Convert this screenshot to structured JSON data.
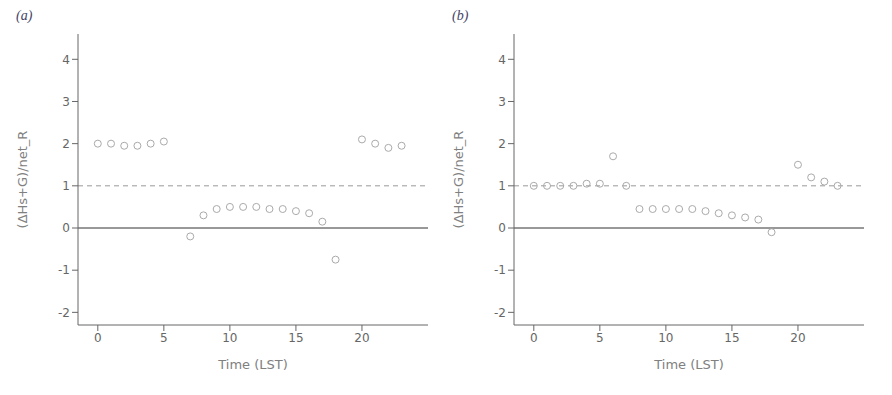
{
  "chart_data": [
    {
      "type": "scatter",
      "title": "(a)",
      "x_label": "Time (LST)",
      "y_label": "(ΔHs+G)/net_R",
      "x": [
        0,
        1,
        2,
        3,
        4,
        5,
        7,
        8,
        9,
        10,
        11,
        12,
        13,
        14,
        15,
        16,
        17,
        18,
        20,
        21,
        22,
        23
      ],
      "values": [
        2.0,
        2.0,
        1.95,
        1.95,
        2.0,
        2.05,
        -0.2,
        0.3,
        0.45,
        0.5,
        0.5,
        0.5,
        0.45,
        0.45,
        0.4,
        0.35,
        0.15,
        -0.75,
        2.1,
        2.0,
        1.9,
        1.95
      ],
      "color": "#aaaaaa",
      "marker": "open_circle",
      "xlim": [
        -1.5,
        25
      ],
      "ylim": [
        -2.3,
        4.6
      ],
      "xticks": [
        0,
        5,
        10,
        15,
        20
      ],
      "yticks": [
        -2,
        -1,
        0,
        1,
        2,
        3,
        4
      ],
      "grid": false,
      "reference_lines": [
        {
          "y": 0,
          "color": "#333333",
          "line_style": "solid"
        },
        {
          "y": 1,
          "color": "#999999",
          "line_style": "dashed"
        }
      ]
    },
    {
      "type": "scatter",
      "title": "(b)",
      "x_label": "Time (LST)",
      "y_label": "(ΔHs+G)/net_R",
      "x": [
        0,
        1,
        2,
        3,
        4,
        5,
        6,
        7,
        8,
        9,
        10,
        11,
        12,
        13,
        14,
        15,
        16,
        17,
        18,
        20,
        21,
        22,
        23
      ],
      "values": [
        1.0,
        1.0,
        1.0,
        1.0,
        1.05,
        1.05,
        1.7,
        1.0,
        0.45,
        0.45,
        0.45,
        0.45,
        0.45,
        0.4,
        0.35,
        0.3,
        0.25,
        0.2,
        -0.1,
        1.5,
        1.2,
        1.1,
        1.0
      ],
      "color": "#aaaaaa",
      "marker": "open_circle",
      "xlim": [
        -1.5,
        25
      ],
      "ylim": [
        -2.3,
        4.6
      ],
      "xticks": [
        0,
        5,
        10,
        15,
        20
      ],
      "yticks": [
        -2,
        -1,
        0,
        1,
        2,
        3,
        4
      ],
      "grid": false,
      "reference_lines": [
        {
          "y": 0,
          "color": "#333333",
          "line_style": "solid"
        },
        {
          "y": 1,
          "color": "#999999",
          "line_style": "dashed"
        }
      ]
    }
  ]
}
